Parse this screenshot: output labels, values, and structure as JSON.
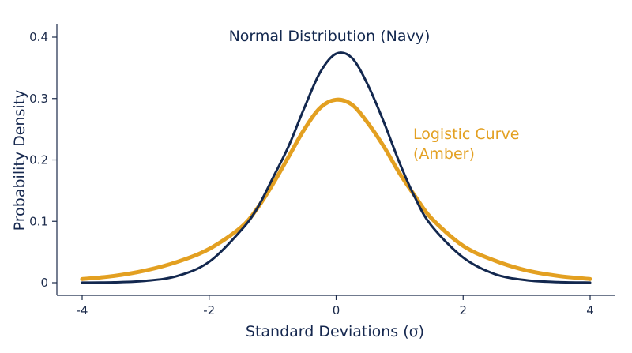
{
  "chart_data": {
    "type": "line",
    "xlabel": "Standard Deviations (σ)",
    "ylabel": "Probability Density",
    "xlim": [
      -4,
      4
    ],
    "ylim": [
      0,
      0.4
    ],
    "x_ticks": [
      "-4",
      "-2",
      "0",
      "2",
      "4"
    ],
    "y_ticks": [
      "0",
      "0.1",
      "0.2",
      "0.3",
      "0.4"
    ],
    "grid": false,
    "series": [
      {
        "name": "Normal Distribution (Navy)",
        "color": "#13284f",
        "x": [
          -4,
          -3.5,
          -3,
          -2.5,
          -2,
          -1.5,
          -1.25,
          -1,
          -0.75,
          -0.5,
          -0.25,
          0,
          0.25,
          0.5,
          0.75,
          1,
          1.25,
          1.5,
          2,
          2.5,
          3,
          3.5,
          4
        ],
        "y": [
          0.0001,
          0.0006,
          0.003,
          0.011,
          0.034,
          0.085,
          0.12,
          0.17,
          0.222,
          0.285,
          0.343,
          0.373,
          0.366,
          0.322,
          0.262,
          0.195,
          0.137,
          0.093,
          0.041,
          0.014,
          0.004,
          0.001,
          0.0002
        ]
      },
      {
        "name": "Logistic Curve (Amber)",
        "color": "#e3a021",
        "x": [
          -4,
          -3.5,
          -3,
          -2.5,
          -2,
          -1.5,
          -1.25,
          -1,
          -0.75,
          -0.5,
          -0.25,
          0,
          0.25,
          0.5,
          0.75,
          1,
          1.25,
          1.5,
          2,
          2.5,
          3,
          3.5,
          4
        ],
        "y": [
          0.006,
          0.011,
          0.02,
          0.034,
          0.055,
          0.09,
          0.12,
          0.16,
          0.205,
          0.25,
          0.285,
          0.298,
          0.29,
          0.26,
          0.222,
          0.178,
          0.14,
          0.105,
          0.06,
          0.036,
          0.02,
          0.011,
          0.006
        ]
      }
    ],
    "annotations": [
      {
        "lines": [
          "Normal Distribution (Navy)"
        ],
        "color": "#13284f"
      },
      {
        "lines": [
          "Logistic Curve",
          "(Amber)"
        ],
        "color": "#e3a021"
      }
    ]
  }
}
